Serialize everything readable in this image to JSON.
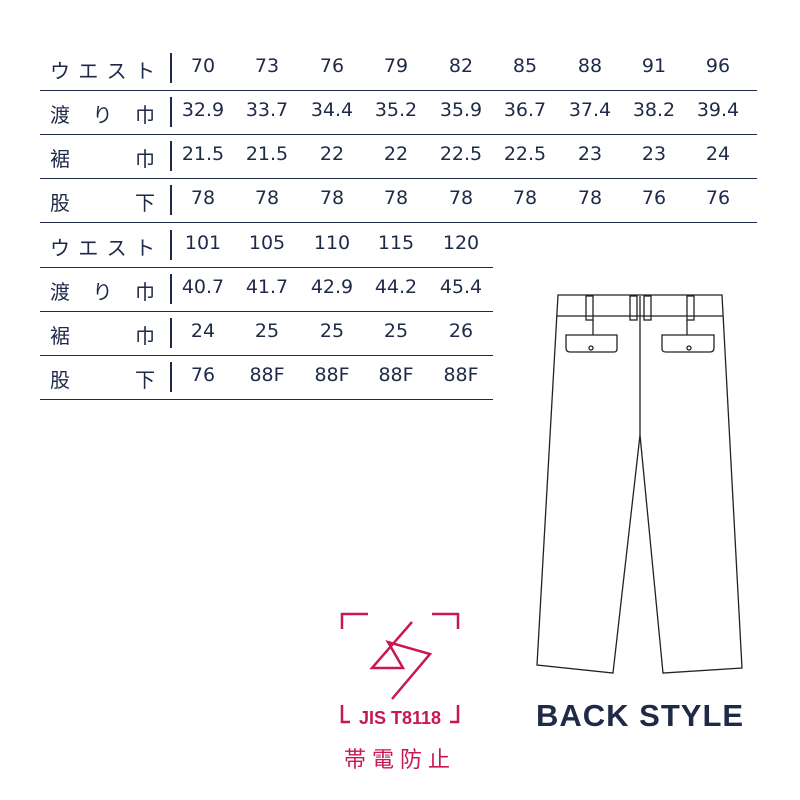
{
  "tables": [
    {
      "rows": [
        {
          "label": [
            "ウ",
            "エ",
            "ス",
            "ト"
          ],
          "values": [
            "70",
            "73",
            "76",
            "79",
            "82",
            "85",
            "88",
            "91",
            "96"
          ]
        },
        {
          "label": [
            "渡",
            "り",
            "巾"
          ],
          "values": [
            "32.9",
            "33.7",
            "34.4",
            "35.2",
            "35.9",
            "36.7",
            "37.4",
            "38.2",
            "39.4"
          ]
        },
        {
          "label": [
            "裾",
            "巾"
          ],
          "values": [
            "21.5",
            "21.5",
            "22",
            "22",
            "22.5",
            "22.5",
            "23",
            "23",
            "24"
          ]
        },
        {
          "label": [
            "股",
            "下"
          ],
          "values": [
            "78",
            "78",
            "78",
            "78",
            "78",
            "78",
            "78",
            "76",
            "76"
          ]
        }
      ]
    },
    {
      "rows": [
        {
          "label": [
            "ウ",
            "エ",
            "ス",
            "ト"
          ],
          "values": [
            "101",
            "105",
            "110",
            "115",
            "120"
          ]
        },
        {
          "label": [
            "渡",
            "り",
            "巾"
          ],
          "values": [
            "40.7",
            "41.7",
            "42.9",
            "44.2",
            "45.4"
          ]
        },
        {
          "label": [
            "裾",
            "巾"
          ],
          "values": [
            "24",
            "25",
            "25",
            "25",
            "26"
          ]
        },
        {
          "label": [
            "股",
            "下"
          ],
          "values": [
            "76",
            "88F",
            "88F",
            "88F",
            "88F"
          ]
        }
      ]
    }
  ],
  "badge": {
    "standard": "JIS T8118",
    "caption": "帯電防止",
    "color": "#c8184f",
    "icon": "lightning-bolt-icon"
  },
  "back_style": "BACK STYLE",
  "text_color": "#1f2a48"
}
